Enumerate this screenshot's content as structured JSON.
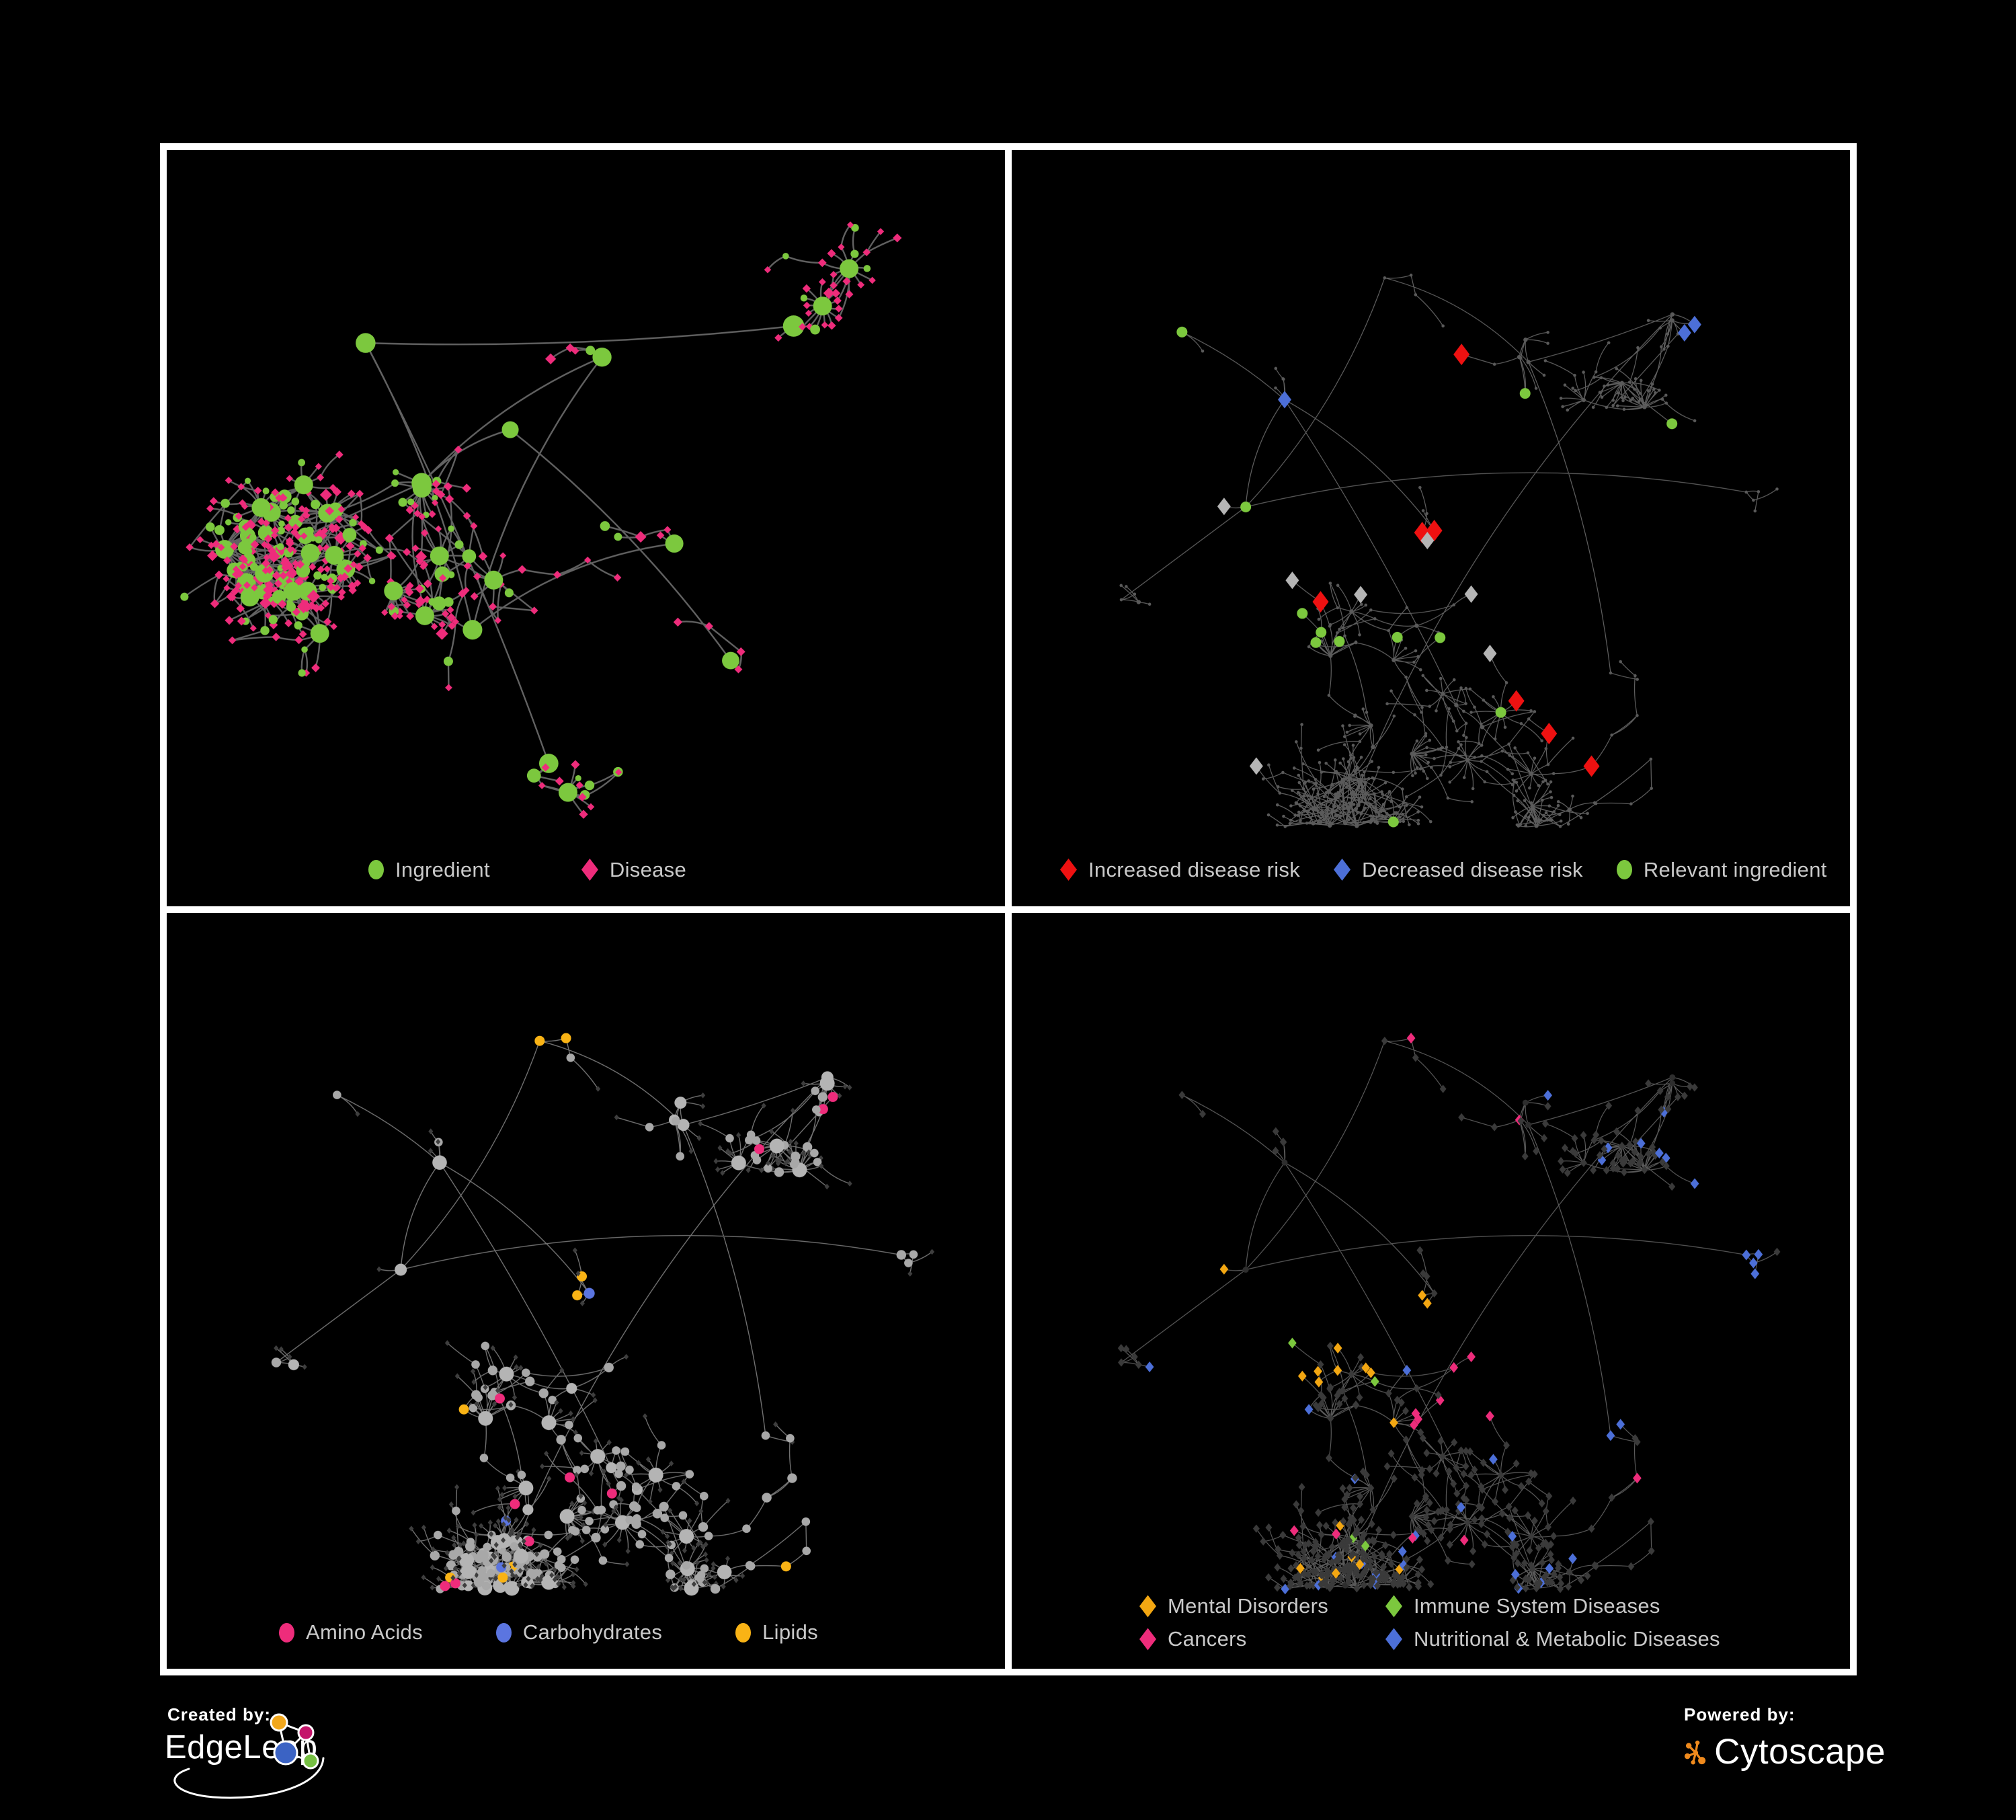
{
  "page": {
    "background": "#000000",
    "figure_border_color": "#ffffff",
    "legend_text_color": "#c9c9c9"
  },
  "panels": [
    {
      "name": "ingredient-disease-network",
      "legend": {
        "items": [
          {
            "label": "Ingredient",
            "shape": "circle",
            "color": "#7cc83e"
          },
          {
            "label": "Disease",
            "shape": "diamond",
            "color": "#ee2c7b"
          }
        ]
      }
    },
    {
      "name": "disease-risk-network",
      "legend": {
        "items": [
          {
            "label": "Increased disease risk",
            "shape": "diamond",
            "color": "#ee1111"
          },
          {
            "label": "Decreased disease risk",
            "shape": "diamond",
            "color": "#4c6fd8"
          },
          {
            "label": "Relevant ingredient",
            "shape": "circle",
            "color": "#7cc83e"
          }
        ]
      }
    },
    {
      "name": "nutrient-class-network",
      "legend": {
        "items": [
          {
            "label": "Amino Acids",
            "shape": "circle",
            "color": "#ee2c7b"
          },
          {
            "label": "Carbohydrates",
            "shape": "circle",
            "color": "#5b75e0"
          },
          {
            "label": "Lipids",
            "shape": "circle",
            "color": "#f9b315"
          }
        ]
      }
    },
    {
      "name": "disease-class-network",
      "legend": {
        "items": [
          {
            "label": "Mental Disorders",
            "shape": "diamond",
            "color": "#f3a712"
          },
          {
            "label": "Immune System Diseases",
            "shape": "diamond",
            "color": "#7cc83e"
          },
          {
            "label": "Cancers",
            "shape": "diamond",
            "color": "#ee2c7b"
          },
          {
            "label": "Nutritional & Metabolic Diseases",
            "shape": "diamond",
            "color": "#4c6fd8"
          }
        ]
      }
    }
  ],
  "network_style": {
    "panel1": {
      "edge_color": "#676767",
      "edge_width": 2.4
    },
    "panel2": {
      "edge_color": "#6f6f6f",
      "edge_width": 1.25,
      "base_node_color": "#5a5a5a",
      "neutral_diamond_color": "#b5b5b5"
    },
    "panel3": {
      "edge_color": "#8d8d8d",
      "edge_width": 1.4,
      "hub_color": "#a8a8a8",
      "leaf_color": "#3e3e3e"
    },
    "panel4": {
      "edge_color": "#6a6a6a",
      "edge_width": 1.2,
      "hub_color": "#2e2e2e",
      "leaf_color": "#3a3a3a"
    }
  },
  "footer": {
    "created_by_label": "Created by:",
    "created_by_name": "EdgeLeap",
    "powered_by_label": "Powered by:",
    "powered_by_name": "Cytoscape",
    "cytoscape_icon_color": "#ef8a1d",
    "edgeleap_node_colors": [
      "#f2a71b",
      "#c4156a",
      "#3b63c4",
      "#76c043"
    ]
  }
}
